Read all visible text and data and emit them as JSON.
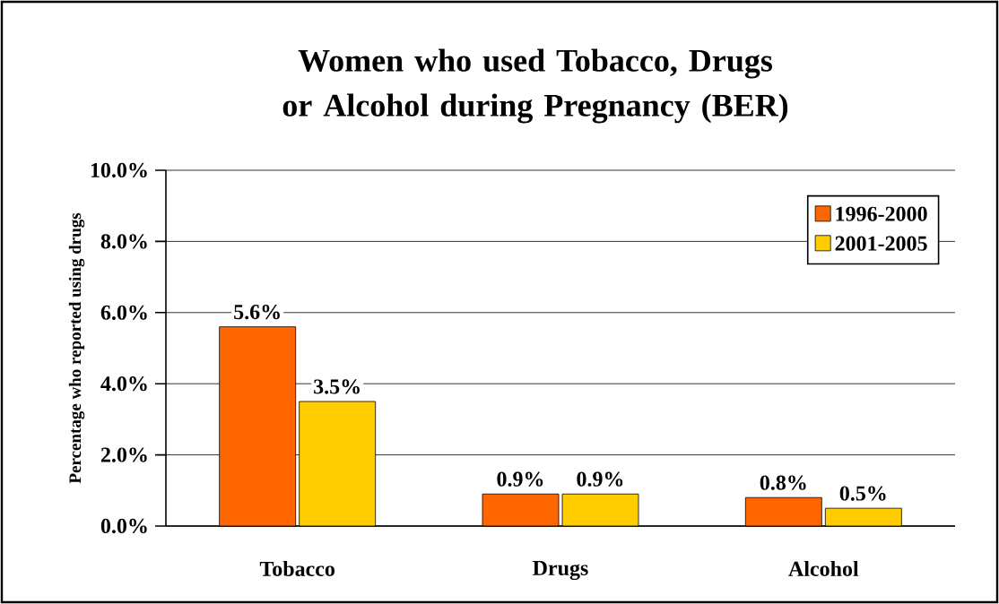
{
  "chart_data": {
    "type": "bar",
    "title": "Women who used Tobacco, Drugs or Alcohol during Pregnancy (BER)",
    "ylabel": "Percentage who reported using drugs",
    "categories": [
      "Tobacco",
      "Drugs",
      "Alcohol"
    ],
    "series": [
      {
        "name": "1996-2000",
        "color": "#ff6600",
        "values": [
          5.6,
          0.9,
          0.8
        ],
        "value_labels": [
          "5.6%",
          "0.9%",
          "0.8%"
        ]
      },
      {
        "name": "2001-2005",
        "color": "#ffcc00",
        "values": [
          3.5,
          0.9,
          0.5
        ],
        "value_labels": [
          "3.5%",
          "0.9%",
          "0.5%"
        ]
      }
    ],
    "ylim": [
      0,
      10
    ],
    "yticks": [
      {
        "value": 0,
        "label": "0.0%"
      },
      {
        "value": 2,
        "label": "2.0%"
      },
      {
        "value": 4,
        "label": "4.0%"
      },
      {
        "value": 6,
        "label": "6.0%"
      },
      {
        "value": 8,
        "label": "8.0%"
      },
      {
        "value": 10,
        "label": "10.0%"
      }
    ],
    "grid": "y",
    "legend": "top right"
  }
}
